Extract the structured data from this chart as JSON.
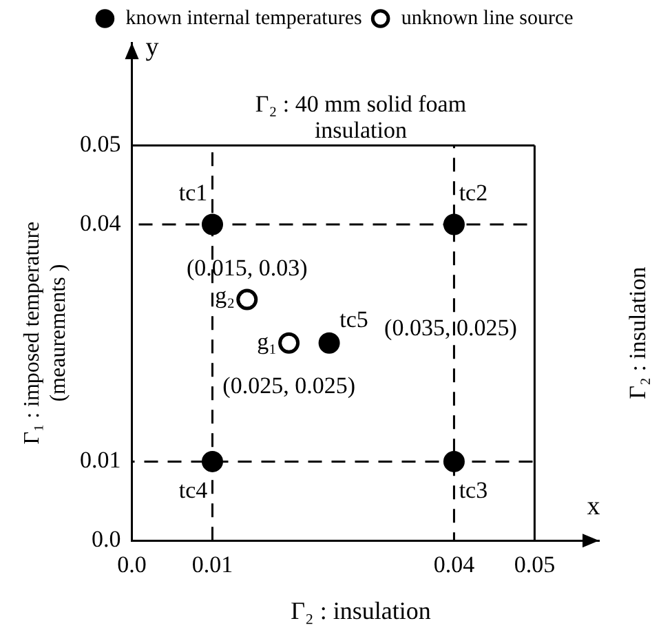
{
  "chart_data": {
    "type": "scatter",
    "xlabel": "x",
    "ylabel": "y",
    "xlim": [
      0,
      0.058
    ],
    "ylim": [
      0,
      0.063
    ],
    "xticks": [
      {
        "value": 0,
        "label": "0.0"
      },
      0.01,
      0.04,
      0.05
    ],
    "yticks": [
      {
        "value": 0,
        "label": "0.0"
      },
      0.01,
      0.04,
      0.05
    ],
    "grid": false,
    "legend": "top",
    "marker": "circle",
    "series": [
      {
        "name": "known internal temperatures",
        "color": "#000000",
        "x": [
          0.01,
          0.04,
          0.04,
          0.01,
          0.0245
        ],
        "values": [
          0.04,
          0.04,
          0.01,
          0.01,
          0.025
        ],
        "value_labels": [
          "tc1",
          "tc2",
          "tc3",
          "tc4",
          "tc5"
        ]
      },
      {
        "name": "unknown line source",
        "color": "#000000",
        "x": [
          0.0195,
          0.0143
        ],
        "values": [
          0.025,
          0.0305
        ],
        "value_labels": [
          "g₁",
          "g₂"
        ]
      }
    ],
    "ref_lines": [
      {
        "axis": "x",
        "value": 0.01,
        "line_style": "dashed"
      },
      {
        "axis": "x",
        "value": 0.04,
        "line_style": "dashed"
      },
      {
        "axis": "y",
        "value": 0.01,
        "line_style": "dashed"
      },
      {
        "axis": "y",
        "value": 0.04,
        "line_style": "dashed"
      },
      {
        "axis": "x",
        "value": 0.05,
        "line_style": "solid"
      },
      {
        "axis": "y",
        "value": 0.05,
        "line_style": "solid"
      }
    ],
    "annotations": [
      "Γ₂ : insulation",
      "Γ₁ : imposed temperature (meaurements )",
      "Γ₂ : 40 mm solid foam insulation",
      "Γ₂ : insulation",
      {
        "text": "(0.015, 0.03)",
        "x": 0.0143,
        "y": 0.0305
      },
      {
        "text": "(0.035, 0.025)",
        "x": 0.0245,
        "y": 0.025
      },
      {
        "text": "(0.025, 0.025)",
        "x": 0.0195,
        "y": 0.025
      }
    ]
  }
}
